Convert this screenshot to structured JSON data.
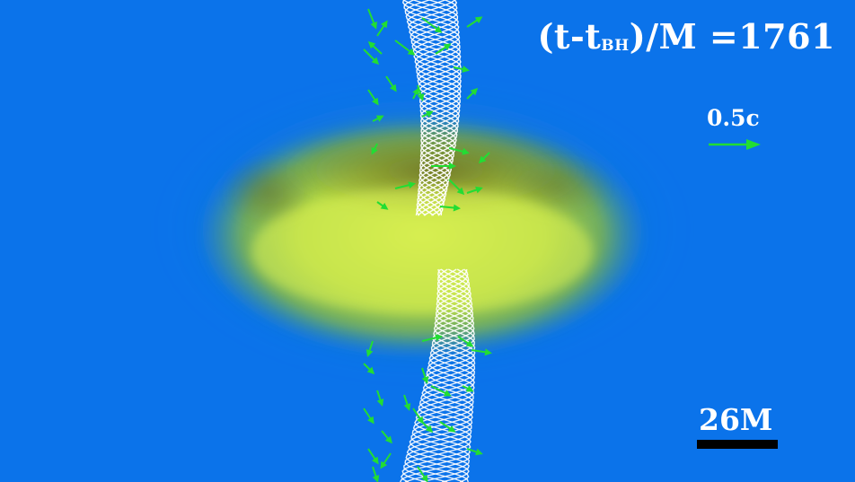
{
  "colors": {
    "background": "#0b73ea",
    "disk_core": "#c9e84a",
    "disk_edge": "#7fb02a",
    "jet": "#ffffff",
    "velocity_arrows": "#22dd33",
    "scale_bar": "#000000"
  },
  "labels": {
    "time_prefix": "(t-t",
    "time_subscript": "BH",
    "time_suffix": ")/M",
    "time_equals": "=",
    "time_value": "1761",
    "velocity_reference": "0.5c",
    "scale": "26M"
  }
}
